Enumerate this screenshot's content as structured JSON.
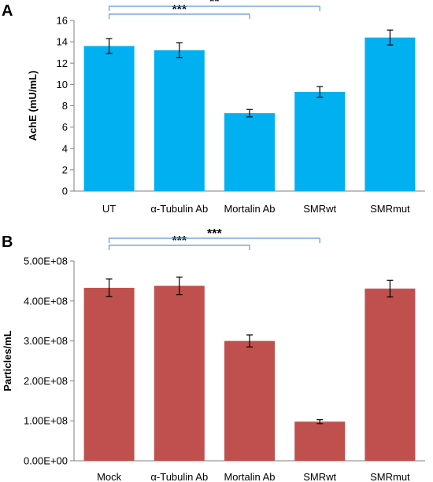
{
  "chart_data": [
    {
      "type": "bar",
      "panel_label": "A",
      "ylabel": "AchE (mU/mL)",
      "ylim": [
        0,
        16
      ],
      "yticks": [
        0,
        2,
        4,
        6,
        8,
        10,
        12,
        14,
        16
      ],
      "ytick_labels": [
        "0",
        "2",
        "4",
        "6",
        "8",
        "10",
        "12",
        "14",
        "16"
      ],
      "categories": [
        "UT",
        "α-Tubulin Ab",
        "Mortalin Ab",
        "SMRwt",
        "SMRmut"
      ],
      "values": [
        13.6,
        13.2,
        7.3,
        9.3,
        14.4
      ],
      "errors": [
        0.7,
        0.7,
        0.35,
        0.5,
        0.7
      ],
      "bar_color": "#00B0F0",
      "grid": false,
      "significance": [
        {
          "from": 0,
          "to": 2,
          "label": "***"
        },
        {
          "from": 0,
          "to": 3,
          "label": "**"
        }
      ]
    },
    {
      "type": "bar",
      "panel_label": "B",
      "ylabel": "Particles/mL",
      "ylim": [
        0,
        500000000
      ],
      "yticks": [
        0,
        100000000,
        200000000,
        300000000,
        400000000,
        500000000
      ],
      "ytick_labels": [
        "0.00E+00",
        "1.00E+08",
        "2.00E+08",
        "3.00E+08",
        "4.00E+08",
        "5.00E+08"
      ],
      "categories": [
        "Mock",
        "α-Tubulin Ab",
        "Mortalin Ab",
        "SMRwt",
        "SMRmut"
      ],
      "values": [
        433000000,
        438000000,
        300000000,
        98000000,
        431000000
      ],
      "errors": [
        22000000,
        22000000,
        15000000,
        5000000,
        21000000
      ],
      "bar_color": "#C0504D",
      "grid": false,
      "significance": [
        {
          "from": 0,
          "to": 2,
          "label": "***"
        },
        {
          "from": 0,
          "to": 3,
          "label": "***"
        }
      ]
    }
  ]
}
